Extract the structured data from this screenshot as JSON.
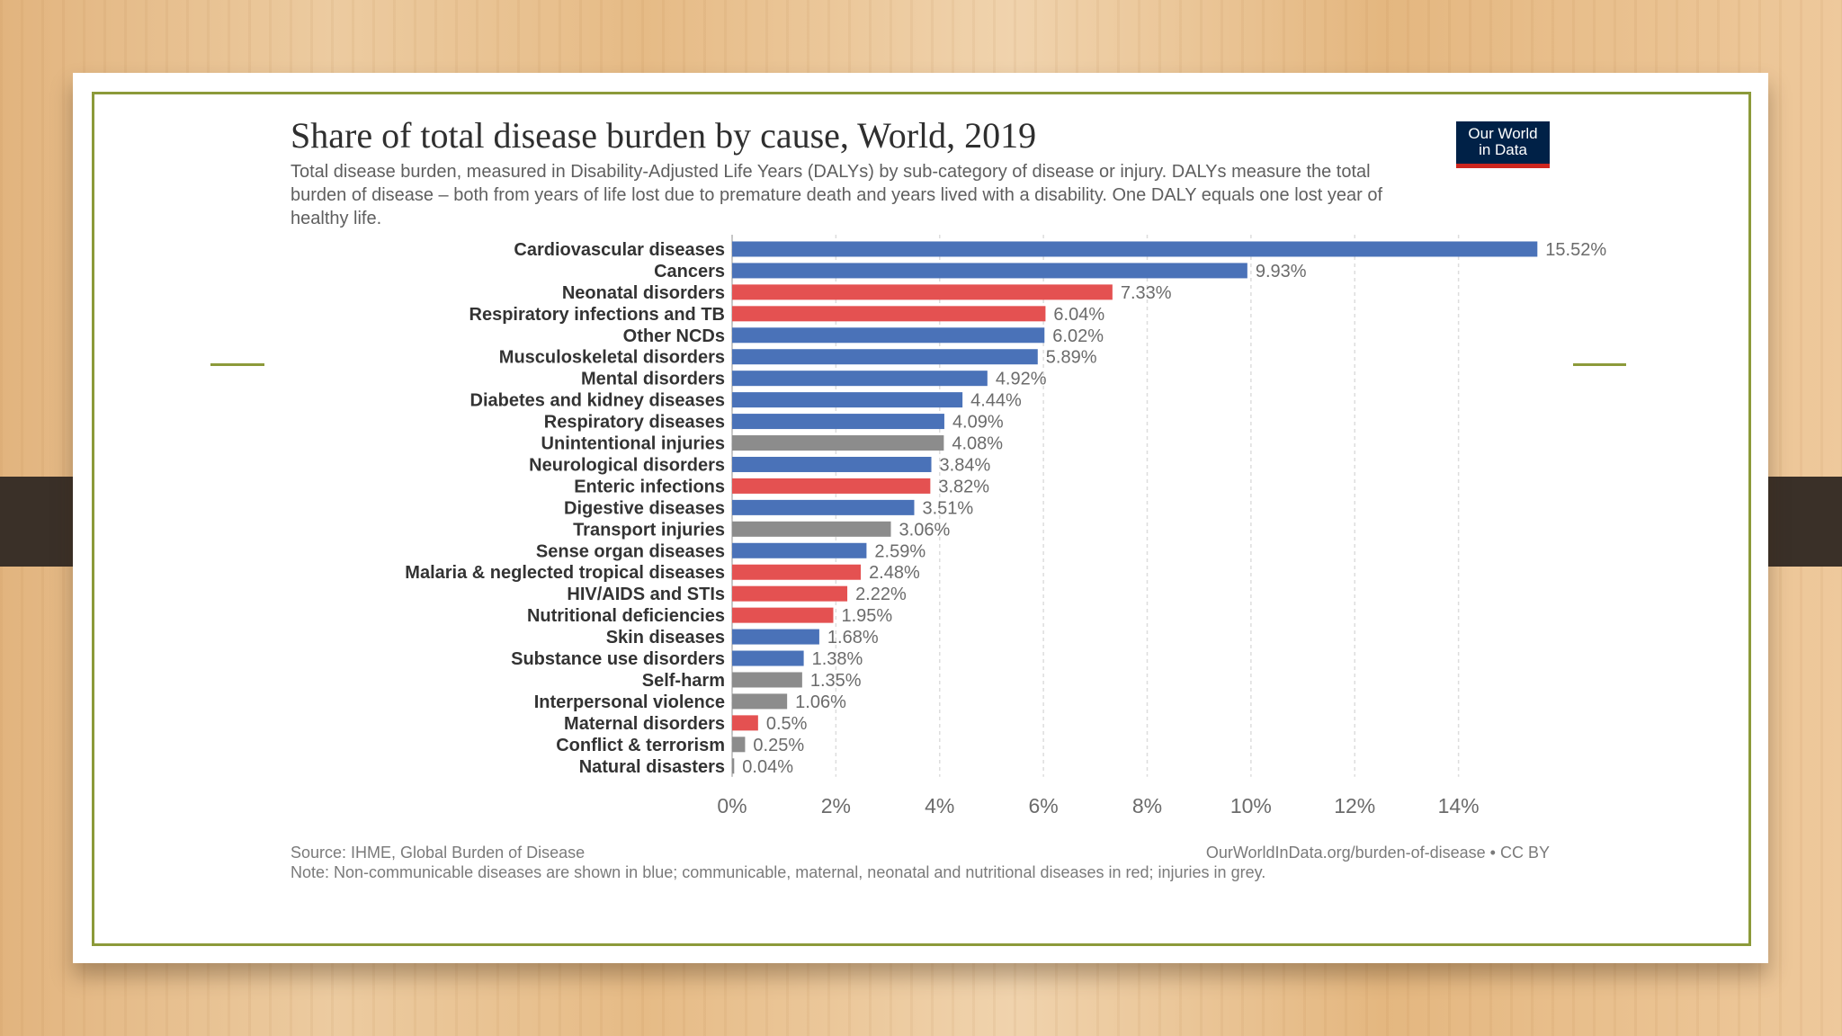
{
  "slide": {
    "accent_color": "#8c9a3a"
  },
  "chart": {
    "title": "Share of total disease burden by cause, World, 2019",
    "subtitle": "Total disease burden, measured in Disability-Adjusted Life Years (DALYs) by sub-category of disease or injury. DALYs measure the total burden of disease – both from years of life lost due to premature death and years lived with a disability. One DALY equals one lost year of healthy life.",
    "logo_line1": "Our World",
    "logo_line2": "in Data",
    "source": "Source: IHME, Global Burden of Disease",
    "url": "OurWorldInData.org/burden-of-disease • CC BY",
    "note": "Note: Non-communicable diseases are shown in blue; communicable, maternal, neonatal and nutritional diseases in red; injuries in grey."
  },
  "chart_data": {
    "type": "bar",
    "orientation": "horizontal",
    "title": "Share of total disease burden by cause, World, 2019",
    "xlabel": "",
    "ylabel": "",
    "xlim": [
      0,
      16
    ],
    "x_ticks": [
      0,
      2,
      4,
      6,
      8,
      10,
      12,
      14
    ],
    "x_tick_labels": [
      "0%",
      "2%",
      "4%",
      "6%",
      "8%",
      "10%",
      "12%",
      "14%"
    ],
    "grid": true,
    "colors": {
      "non_communicable": "#4a72b8",
      "communicable": "#e45151",
      "injuries": "#8c8c8c"
    },
    "legend_note": "Non-communicable diseases are shown in blue; communicable, maternal, neonatal and nutritional diseases in red; injuries in grey.",
    "categories": [
      "Cardiovascular diseases",
      "Cancers",
      "Neonatal disorders",
      "Respiratory infections and TB",
      "Other NCDs",
      "Musculoskeletal disorders",
      "Mental disorders",
      "Diabetes and kidney diseases",
      "Respiratory diseases",
      "Unintentional injuries",
      "Neurological disorders",
      "Enteric infections",
      "Digestive diseases",
      "Transport injuries",
      "Sense organ diseases",
      "Malaria & neglected tropical diseases",
      "HIV/AIDS and STIs",
      "Nutritional deficiencies",
      "Skin diseases",
      "Substance use disorders",
      "Self-harm",
      "Interpersonal violence",
      "Maternal disorders",
      "Conflict & terrorism",
      "Natural disasters"
    ],
    "values": [
      15.52,
      9.93,
      7.33,
      6.04,
      6.02,
      5.89,
      4.92,
      4.44,
      4.09,
      4.08,
      3.84,
      3.82,
      3.51,
      3.06,
      2.59,
      2.48,
      2.22,
      1.95,
      1.68,
      1.38,
      1.35,
      1.06,
      0.5,
      0.25,
      0.04
    ],
    "value_labels": [
      "15.52%",
      "9.93%",
      "7.33%",
      "6.04%",
      "6.02%",
      "5.89%",
      "4.92%",
      "4.44%",
      "4.09%",
      "4.08%",
      "3.84%",
      "3.82%",
      "3.51%",
      "3.06%",
      "2.59%",
      "2.48%",
      "2.22%",
      "1.95%",
      "1.68%",
      "1.38%",
      "1.35%",
      "1.06%",
      "0.5%",
      "0.25%",
      "0.04%"
    ],
    "groups": [
      "non_communicable",
      "non_communicable",
      "communicable",
      "communicable",
      "non_communicable",
      "non_communicable",
      "non_communicable",
      "non_communicable",
      "non_communicable",
      "injuries",
      "non_communicable",
      "communicable",
      "non_communicable",
      "injuries",
      "non_communicable",
      "communicable",
      "communicable",
      "communicable",
      "non_communicable",
      "non_communicable",
      "injuries",
      "injuries",
      "communicable",
      "injuries",
      "injuries"
    ]
  }
}
